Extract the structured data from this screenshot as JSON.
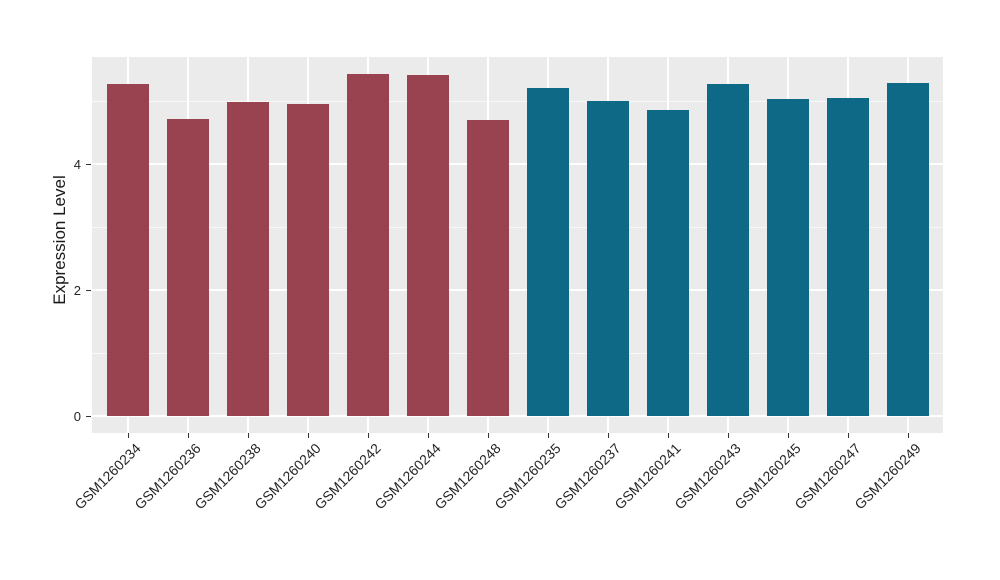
{
  "figure": {
    "background": "#FFFFFF",
    "panel_background": "#EBEBEB",
    "grid_color": "#FFFFFF",
    "tick_color": "#333333",
    "axis_text_color": "#262626"
  },
  "chart_data": {
    "type": "bar",
    "title": "",
    "xlabel": "",
    "ylabel": "Expression Level",
    "categories": [
      "GSM1260234",
      "GSM1260236",
      "GSM1260238",
      "GSM1260240",
      "GSM1260242",
      "GSM1260244",
      "GSM1260248",
      "GSM1260235",
      "GSM1260237",
      "GSM1260241",
      "GSM1260243",
      "GSM1260245",
      "GSM1260247",
      "GSM1260249"
    ],
    "values": [
      5.27,
      4.71,
      4.98,
      4.96,
      5.43,
      5.41,
      4.7,
      5.2,
      5.0,
      4.86,
      5.27,
      5.03,
      5.04,
      5.29
    ],
    "bar_colors": [
      "#9A4350",
      "#9A4350",
      "#9A4350",
      "#9A4350",
      "#9A4350",
      "#9A4350",
      "#9A4350",
      "#0E6987",
      "#0E6987",
      "#0E6987",
      "#0E6987",
      "#0E6987",
      "#0E6987",
      "#0E6987"
    ],
    "groups": [
      {
        "color": "#9A4350",
        "categories": [
          "GSM1260234",
          "GSM1260236",
          "GSM1260238",
          "GSM1260240",
          "GSM1260242",
          "GSM1260244",
          "GSM1260248"
        ]
      },
      {
        "color": "#0E6987",
        "categories": [
          "GSM1260235",
          "GSM1260237",
          "GSM1260241",
          "GSM1260243",
          "GSM1260245",
          "GSM1260247",
          "GSM1260249"
        ]
      }
    ],
    "ylim": [
      -0.27,
      5.7
    ],
    "yticks_major": [
      0,
      2,
      4
    ],
    "yticks_minor": [
      1,
      3,
      5
    ],
    "grid": "on",
    "legend": "none",
    "x_tick_rotation_deg": 45
  }
}
